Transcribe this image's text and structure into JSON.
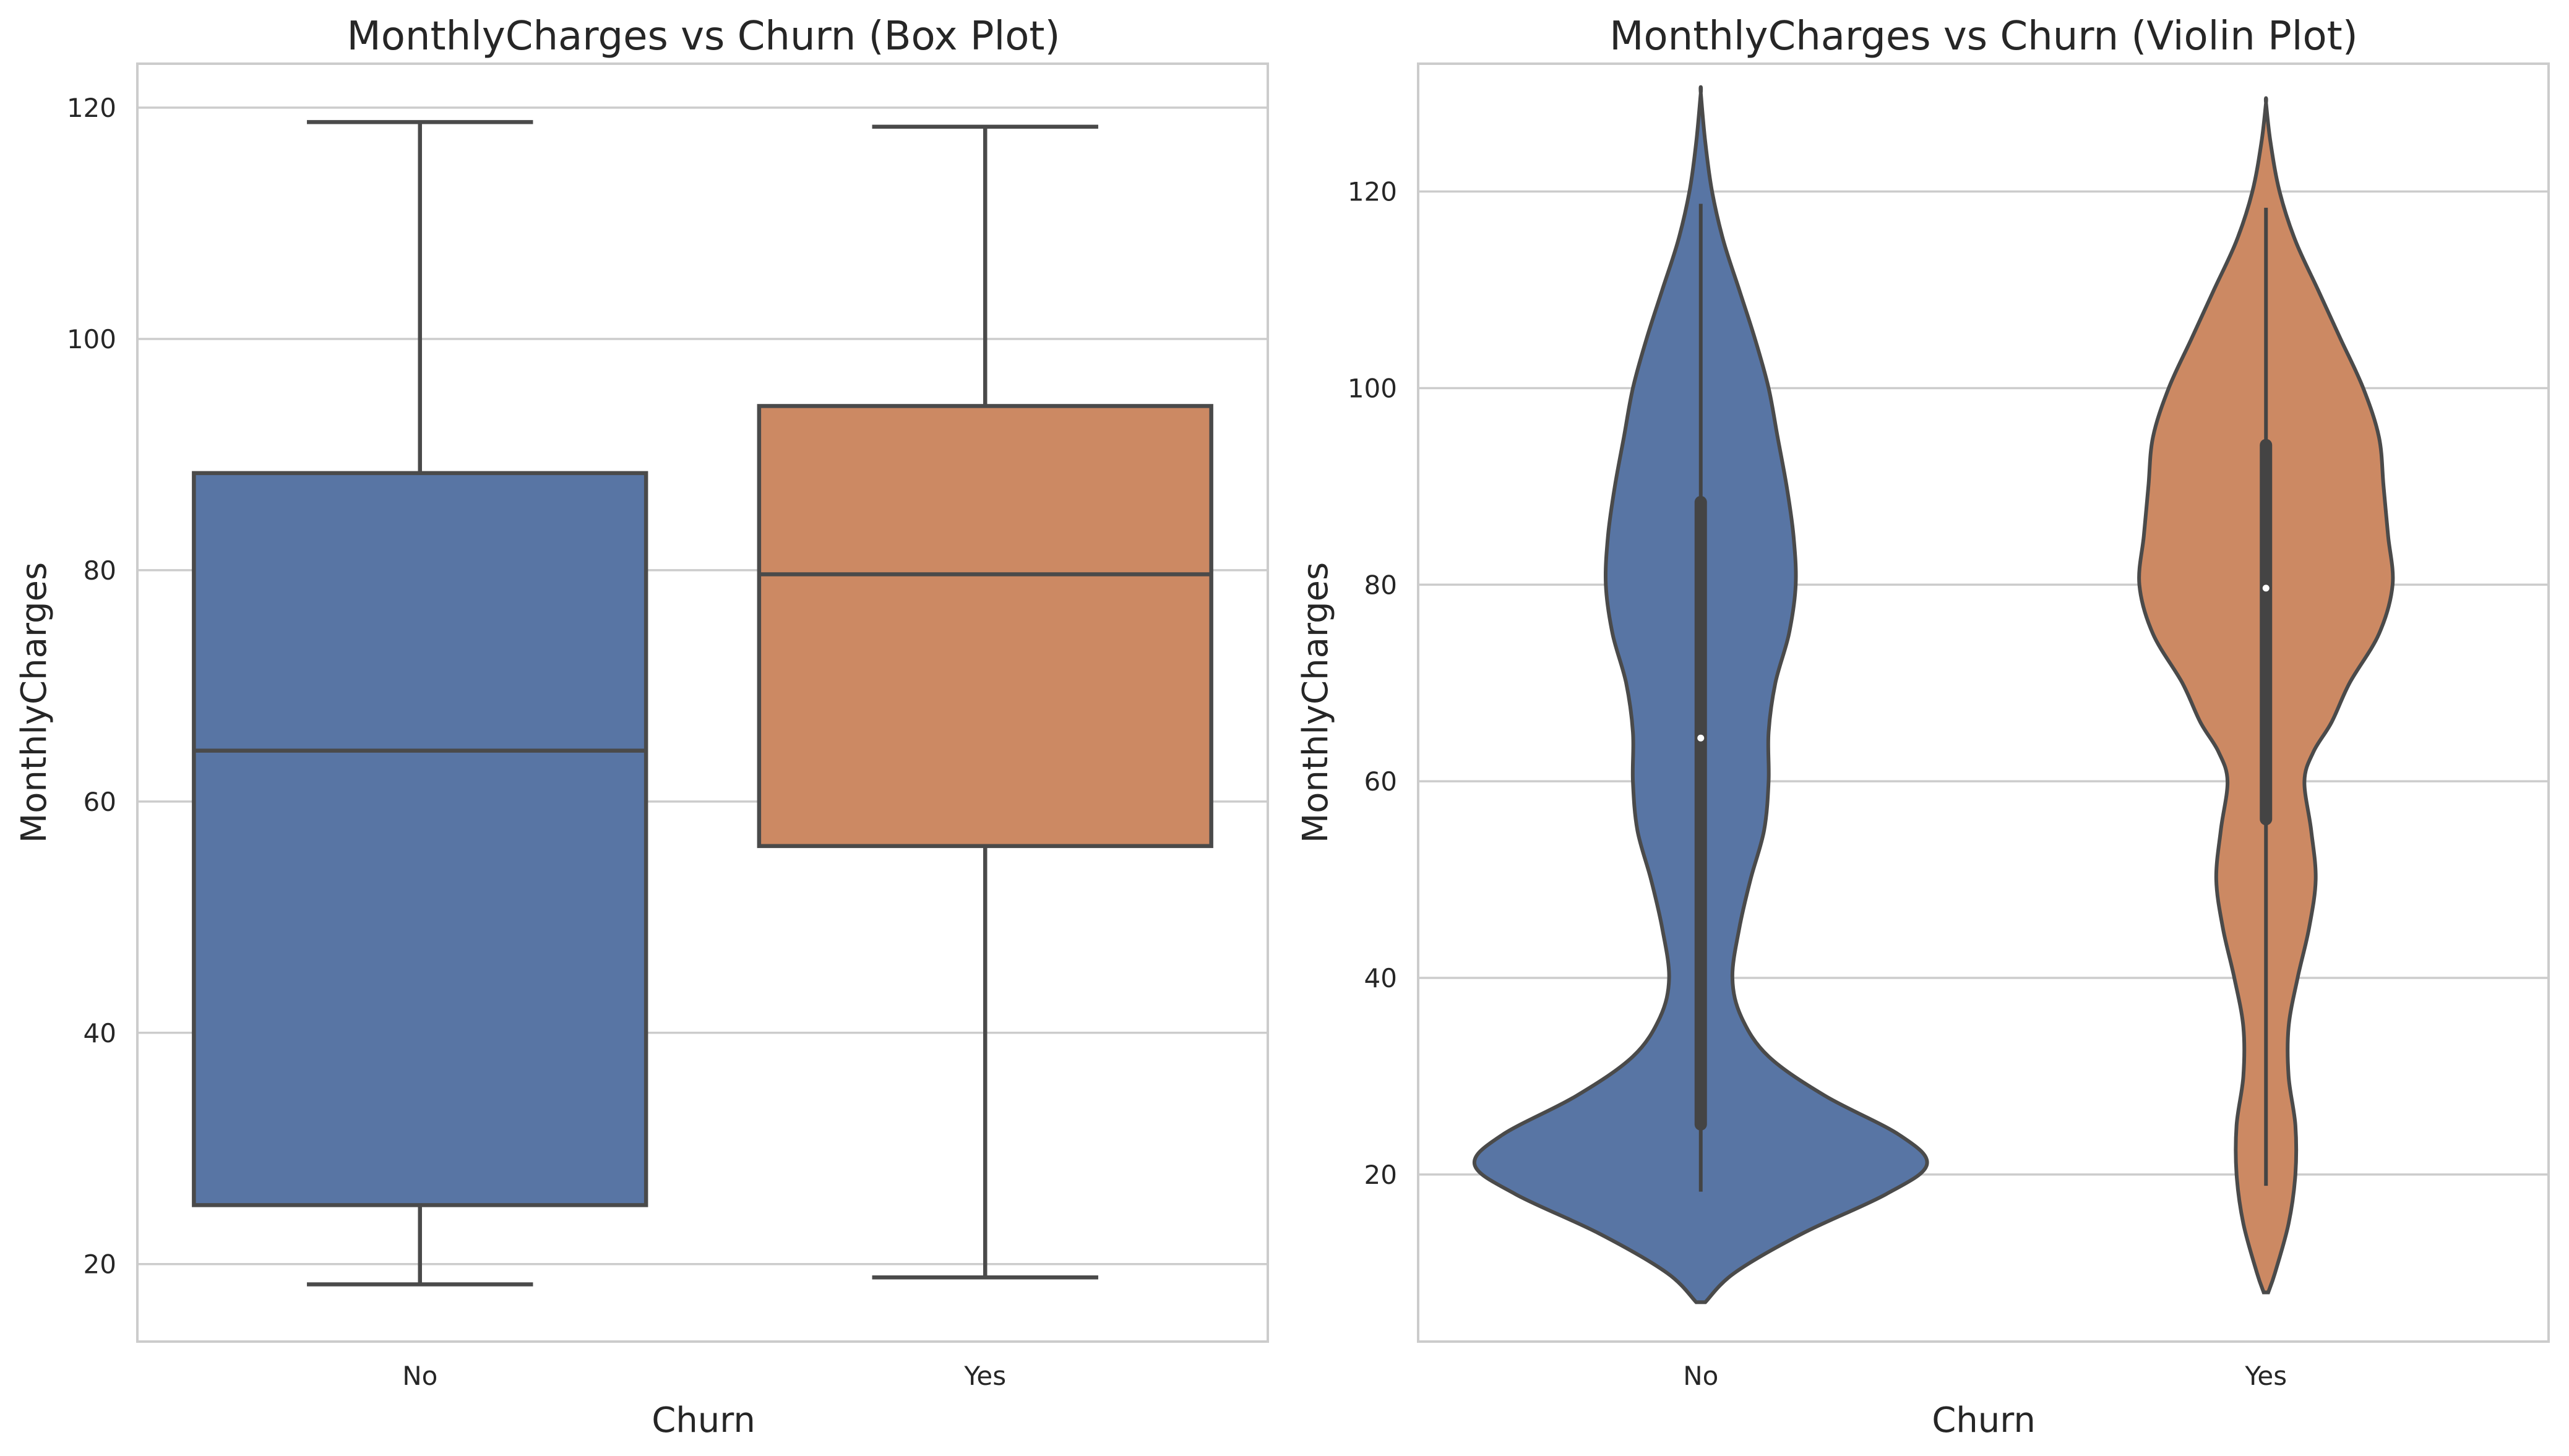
{
  "chart_data": [
    {
      "type": "box",
      "title": "MonthlyCharges vs Churn (Box Plot)",
      "xlabel": "Churn",
      "ylabel": "MonthlyCharges",
      "categories": [
        "No",
        "Yes"
      ],
      "ylim": [
        13.3,
        123.8
      ],
      "yticks": [
        20,
        40,
        60,
        80,
        100,
        120
      ],
      "grid": true,
      "colors": [
        "#5875a4",
        "#cc8963"
      ],
      "boxes": [
        {
          "category": "No",
          "whisker_low": 18.25,
          "q1": 25.1,
          "median": 64.4,
          "q3": 88.4,
          "whisker_high": 118.75
        },
        {
          "category": "Yes",
          "whisker_low": 18.85,
          "q1": 56.15,
          "median": 79.65,
          "q3": 94.2,
          "whisker_high": 118.35
        }
      ]
    },
    {
      "type": "violin",
      "title": "MonthlyCharges vs Churn (Violin Plot)",
      "xlabel": "Churn",
      "ylabel": "MonthlyCharges",
      "categories": [
        "No",
        "Yes"
      ],
      "ylim": [
        3,
        133
      ],
      "yticks": [
        20,
        40,
        60,
        80,
        100,
        120
      ],
      "grid": true,
      "colors": [
        "#5875a4",
        "#cc8963"
      ],
      "violins": [
        {
          "category": "No",
          "whisker_low": 18.25,
          "q1": 25.1,
          "median": 64.4,
          "q3": 88.4,
          "whisker_high": 118.75,
          "density": [
            [
              7,
              0.02
            ],
            [
              10,
              0.15
            ],
            [
              14,
              0.45
            ],
            [
              18,
              0.82
            ],
            [
              21,
              1.0
            ],
            [
              24,
              0.88
            ],
            [
              28,
              0.55
            ],
            [
              32,
              0.3
            ],
            [
              36,
              0.18
            ],
            [
              40,
              0.14
            ],
            [
              45,
              0.17
            ],
            [
              50,
              0.22
            ],
            [
              55,
              0.28
            ],
            [
              60,
              0.3
            ],
            [
              65,
              0.3
            ],
            [
              70,
              0.33
            ],
            [
              75,
              0.39
            ],
            [
              80,
              0.42
            ],
            [
              85,
              0.41
            ],
            [
              90,
              0.38
            ],
            [
              95,
              0.34
            ],
            [
              100,
              0.3
            ],
            [
              105,
              0.24
            ],
            [
              110,
              0.17
            ],
            [
              115,
              0.1
            ],
            [
              120,
              0.05
            ],
            [
              125,
              0.02
            ],
            [
              130,
              0.0
            ]
          ]
        },
        {
          "category": "Yes",
          "whisker_low": 18.85,
          "q1": 56.15,
          "median": 79.65,
          "q3": 94.2,
          "whisker_high": 118.35,
          "density": [
            [
              8,
              0.01
            ],
            [
              10,
              0.04
            ],
            [
              15,
              0.1
            ],
            [
              20,
              0.13
            ],
            [
              25,
              0.13
            ],
            [
              30,
              0.1
            ],
            [
              35,
              0.1
            ],
            [
              40,
              0.14
            ],
            [
              45,
              0.19
            ],
            [
              50,
              0.22
            ],
            [
              55,
              0.2
            ],
            [
              60,
              0.17
            ],
            [
              63,
              0.21
            ],
            [
              66,
              0.29
            ],
            [
              70,
              0.37
            ],
            [
              75,
              0.5
            ],
            [
              80,
              0.56
            ],
            [
              85,
              0.54
            ],
            [
              90,
              0.52
            ],
            [
              95,
              0.5
            ],
            [
              100,
              0.43
            ],
            [
              105,
              0.33
            ],
            [
              110,
              0.23
            ],
            [
              115,
              0.13
            ],
            [
              120,
              0.06
            ],
            [
              125,
              0.02
            ],
            [
              129,
              0.0
            ]
          ]
        }
      ]
    }
  ]
}
